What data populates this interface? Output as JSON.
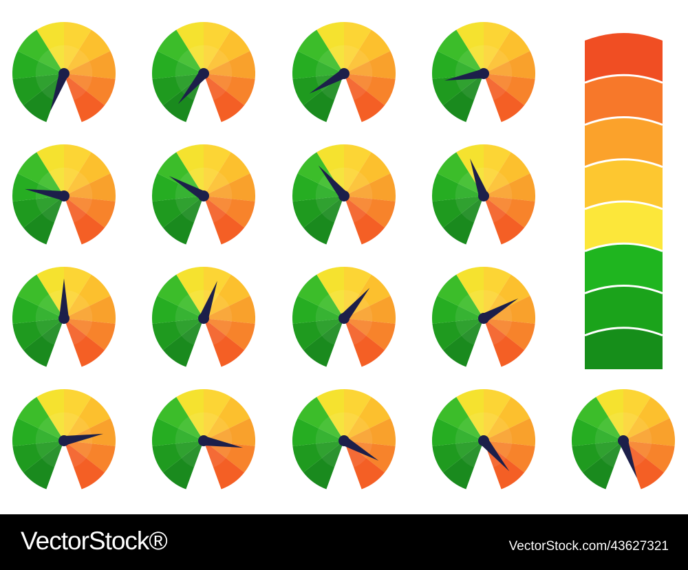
{
  "watermark": {
    "logo": "VectorStock®",
    "id": "VectorStock.com/43627321"
  }
}
